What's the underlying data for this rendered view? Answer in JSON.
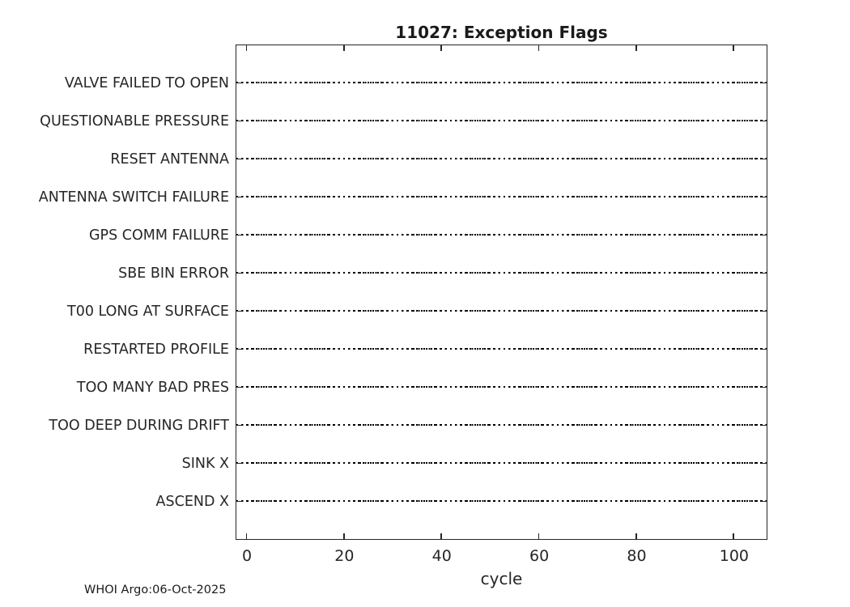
{
  "figure": {
    "title": "11027: Exception Flags",
    "xlabel": "cycle",
    "footer": "WHOI Argo:06-Oct-2025"
  },
  "chart_data": {
    "type": "line",
    "title": "11027: Exception Flags",
    "xlabel": "cycle",
    "ylabel": "",
    "categories": [
      "VALVE FAILED TO OPEN",
      "QUESTIONABLE PRESSURE",
      "RESET ANTENNA",
      "ANTENNA SWITCH FAILURE",
      "GPS COMM FAILURE",
      "SBE BIN ERROR",
      "T00 LONG AT SURFACE",
      "RESTARTED PROFILE",
      "TOO MANY BAD PRES",
      "TOO DEEP DURING DRIFT",
      "SINK X",
      "ASCEND X"
    ],
    "x_ticks": [
      0,
      20,
      40,
      60,
      80,
      100
    ],
    "xlim": [
      -2.33,
      106.83
    ],
    "series": [],
    "events": "none plotted - every category baseline is empty",
    "line_style": "black dotted horizontal baseline per category spanning full x-range",
    "legend": false,
    "grid": false,
    "box": true,
    "tick_direction": "in",
    "colors": {
      "baseline": "#000000",
      "axis": "#262626",
      "text": "#262626",
      "title": "#1a1a1a",
      "background": "#ffffff"
    }
  }
}
